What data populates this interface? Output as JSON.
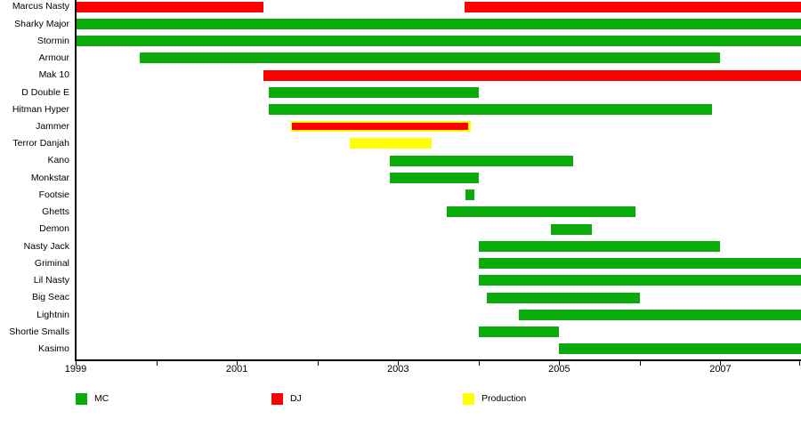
{
  "legend": {
    "items": [
      {
        "id": "mc",
        "label": "MC",
        "color": "#0bab0b"
      },
      {
        "id": "dj",
        "label": "DJ",
        "color": "#ff0000"
      },
      {
        "id": "production",
        "label": "Production",
        "color": "#ffff00"
      }
    ]
  },
  "chart_data": {
    "type": "timeline",
    "title": "",
    "xlabel": "",
    "ylabel": "",
    "axis": {
      "start": 1999,
      "end": 2008,
      "tick_interval": 1,
      "labeled_ticks": [
        1999,
        2001,
        2003,
        2005,
        2007
      ],
      "tick_labels": [
        "1999",
        "2001",
        "2003",
        "2005",
        "2007"
      ]
    },
    "colors": {
      "MC": "#0bab0b",
      "DJ": "#ff0000",
      "Production": "#ffff00"
    },
    "rows": [
      {
        "name": "Marcus Nasty",
        "bars": [
          {
            "role": "DJ",
            "start": 1999.0,
            "end": 2001.33
          },
          {
            "role": "DJ",
            "start": 2003.83,
            "end": 2008.0
          }
        ]
      },
      {
        "name": "Sharky Major",
        "bars": [
          {
            "role": "MC",
            "start": 1999.0,
            "end": 2008.0
          }
        ]
      },
      {
        "name": "Stormin",
        "bars": [
          {
            "role": "MC",
            "start": 1999.0,
            "end": 2008.0
          }
        ]
      },
      {
        "name": "Armour",
        "bars": [
          {
            "role": "MC",
            "start": 1999.8,
            "end": 2007.0
          }
        ]
      },
      {
        "name": "Mak 10",
        "bars": [
          {
            "role": "DJ",
            "start": 2001.33,
            "end": 2008.0
          }
        ]
      },
      {
        "name": "D Double E",
        "bars": [
          {
            "role": "MC",
            "start": 2001.4,
            "end": 2004.0
          }
        ]
      },
      {
        "name": "Hitman Hyper",
        "bars": [
          {
            "role": "MC",
            "start": 2001.4,
            "end": 2006.9
          }
        ]
      },
      {
        "name": "Jammer",
        "bars": [
          {
            "role": "DJ+Production",
            "start": 2001.67,
            "end": 2003.9
          }
        ]
      },
      {
        "name": "Terror Danjah",
        "bars": [
          {
            "role": "Production",
            "start": 2002.4,
            "end": 2003.42
          }
        ]
      },
      {
        "name": "Kano",
        "bars": [
          {
            "role": "MC",
            "start": 2002.9,
            "end": 2005.17
          }
        ]
      },
      {
        "name": "Monkstar",
        "bars": [
          {
            "role": "MC",
            "start": 2002.9,
            "end": 2004.0
          }
        ]
      },
      {
        "name": "Footsie",
        "bars": [
          {
            "role": "MC",
            "start": 2003.84,
            "end": 2003.95
          }
        ]
      },
      {
        "name": "Ghetts",
        "bars": [
          {
            "role": "MC",
            "start": 2003.6,
            "end": 2005.95
          }
        ]
      },
      {
        "name": "Demon",
        "bars": [
          {
            "role": "MC",
            "start": 2004.9,
            "end": 2005.4
          }
        ]
      },
      {
        "name": "Nasty Jack",
        "bars": [
          {
            "role": "MC",
            "start": 2004.0,
            "end": 2007.0
          }
        ]
      },
      {
        "name": "Griminal",
        "bars": [
          {
            "role": "MC",
            "start": 2004.0,
            "end": 2008.0
          }
        ]
      },
      {
        "name": "Lil Nasty",
        "bars": [
          {
            "role": "MC",
            "start": 2004.0,
            "end": 2008.0
          }
        ]
      },
      {
        "name": "Big Seac",
        "bars": [
          {
            "role": "MC",
            "start": 2004.1,
            "end": 2006.0
          }
        ]
      },
      {
        "name": "Lightnin",
        "bars": [
          {
            "role": "MC",
            "start": 2004.5,
            "end": 2008.0
          }
        ]
      },
      {
        "name": "Shortie Smalls",
        "bars": [
          {
            "role": "MC",
            "start": 2004.0,
            "end": 2005.0
          }
        ]
      },
      {
        "name": "Kasimo",
        "bars": [
          {
            "role": "MC",
            "start": 2005.0,
            "end": 2008.0
          }
        ]
      }
    ]
  }
}
